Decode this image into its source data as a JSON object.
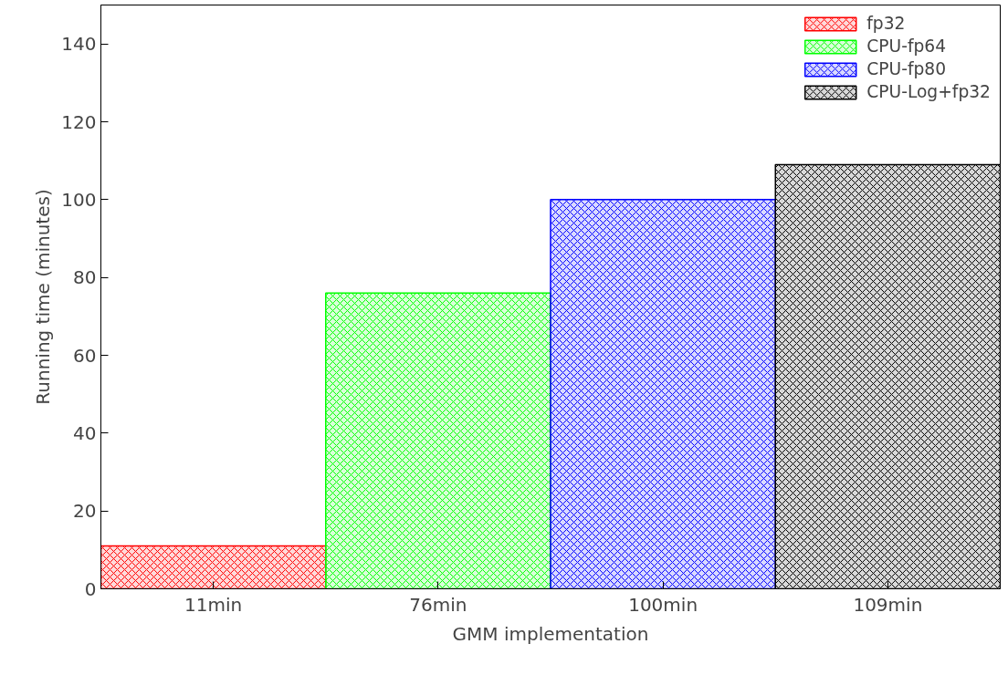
{
  "chart_data": {
    "type": "bar",
    "xlabel": "GMM implementation",
    "ylabel": "Running time (minutes)",
    "categories": [
      "11min",
      "76min",
      "100min",
      "109min"
    ],
    "series": [
      {
        "name": "fp32",
        "color": "#ff0000",
        "values": [
          11,
          null,
          null,
          null
        ]
      },
      {
        "name": "CPU-fp64",
        "color": "#00ff00",
        "values": [
          null,
          76,
          null,
          null
        ]
      },
      {
        "name": "CPU-fp80",
        "color": "#0000ff",
        "values": [
          null,
          null,
          100,
          null
        ]
      },
      {
        "name": "CPU-Log+fp32",
        "color": "#000000",
        "values": [
          null,
          null,
          null,
          109
        ]
      }
    ],
    "ylim": [
      0,
      150
    ],
    "yticks": [
      0,
      20,
      40,
      60,
      80,
      100,
      120,
      140
    ],
    "grid": false,
    "legend": "top right"
  }
}
